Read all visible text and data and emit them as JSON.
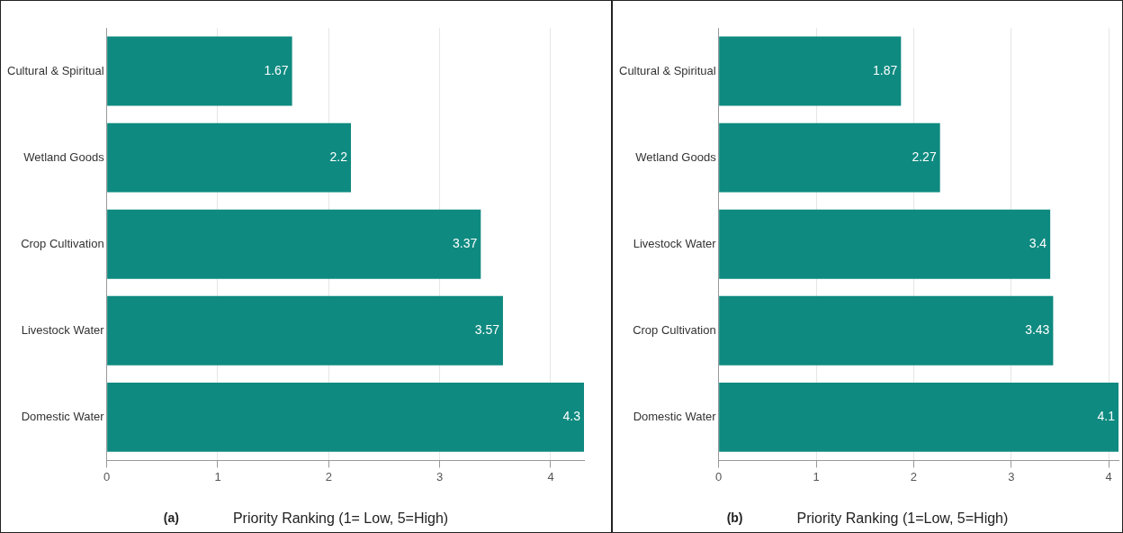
{
  "chart_data": [
    {
      "type": "bar",
      "orientation": "horizontal",
      "categories": [
        "Cultural & Spiritual",
        "Wetland Goods",
        "Crop Cultivation",
        "Livestock Water",
        "Domestic Water"
      ],
      "values": [
        1.67,
        2.2,
        3.37,
        3.57,
        4.3
      ],
      "color": "#0f8a80",
      "xlim": [
        0,
        4.3
      ],
      "xticks": [
        0,
        1,
        2,
        3,
        4
      ],
      "grid": "x",
      "legend": false,
      "data_labels": true,
      "xlabel": "Priority Ranking (1= Low, 5=High)",
      "annotations": [
        "(a)"
      ]
    },
    {
      "type": "bar",
      "orientation": "horizontal",
      "categories": [
        "Cultural & Spiritual",
        "Wetland Goods",
        "Livestock Water",
        "Crop Cultivation",
        "Domestic Water"
      ],
      "values": [
        1.87,
        2.27,
        3.4,
        3.43,
        4.1
      ],
      "color": "#0f8a80",
      "xlim": [
        0,
        4.1
      ],
      "xticks": [
        0,
        1,
        2,
        3,
        4
      ],
      "grid": "x",
      "legend": false,
      "data_labels": true,
      "xlabel": "Priority Ranking (1=Low, 5=High)",
      "annotations": [
        "(b)"
      ]
    }
  ]
}
